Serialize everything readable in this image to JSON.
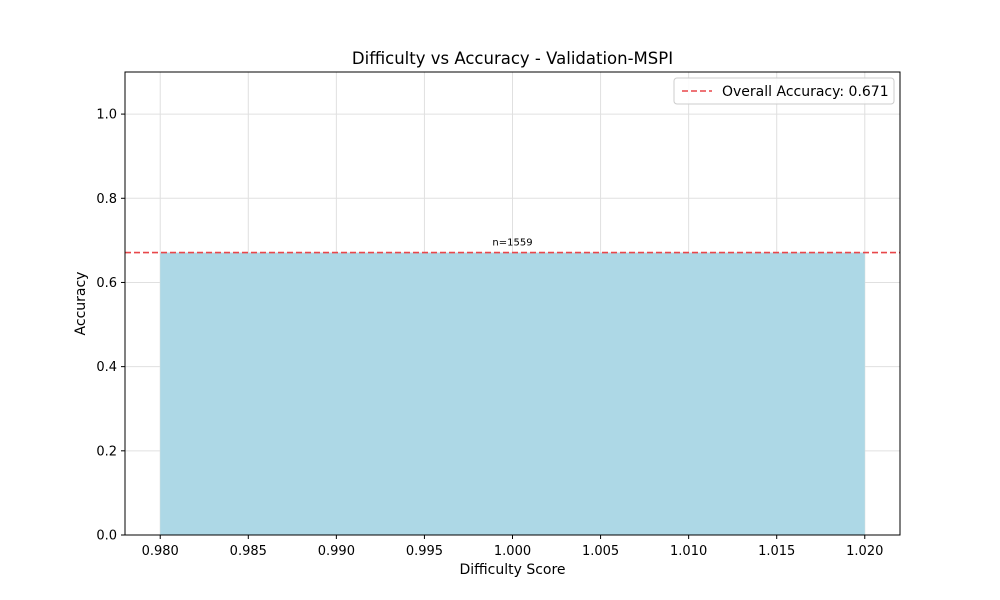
{
  "chart_data": {
    "type": "bar",
    "title": "Difficulty vs Accuracy - Validation-MSPI",
    "xlabel": "Difficulty Score",
    "ylabel": "Accuracy",
    "xlim": [
      0.978,
      1.022
    ],
    "ylim": [
      0,
      1.1
    ],
    "xticks": [
      "0.980",
      "0.985",
      "0.990",
      "0.995",
      "1.000",
      "1.005",
      "1.010",
      "1.015",
      "1.020"
    ],
    "xtick_values": [
      0.98,
      0.985,
      0.99,
      0.995,
      1.0,
      1.005,
      1.01,
      1.015,
      1.02
    ],
    "yticks": [
      "0.0",
      "0.2",
      "0.4",
      "0.6",
      "0.8",
      "1.0"
    ],
    "ytick_values": [
      0.0,
      0.2,
      0.4,
      0.6,
      0.8,
      1.0
    ],
    "grid": true,
    "bars": [
      {
        "x_start": 0.98,
        "x_end": 1.02,
        "value": 0.671,
        "label": "n=1559"
      }
    ],
    "reference_line": {
      "value": 0.671,
      "style": "dashed",
      "label": "Overall Accuracy: 0.671"
    },
    "legend": {
      "position": "top-right",
      "entries": [
        "Overall Accuracy: 0.671"
      ]
    },
    "colors": {
      "bar": "#add8e6",
      "reference_line": "#e8474a",
      "grid": "#e0e0e0"
    }
  }
}
